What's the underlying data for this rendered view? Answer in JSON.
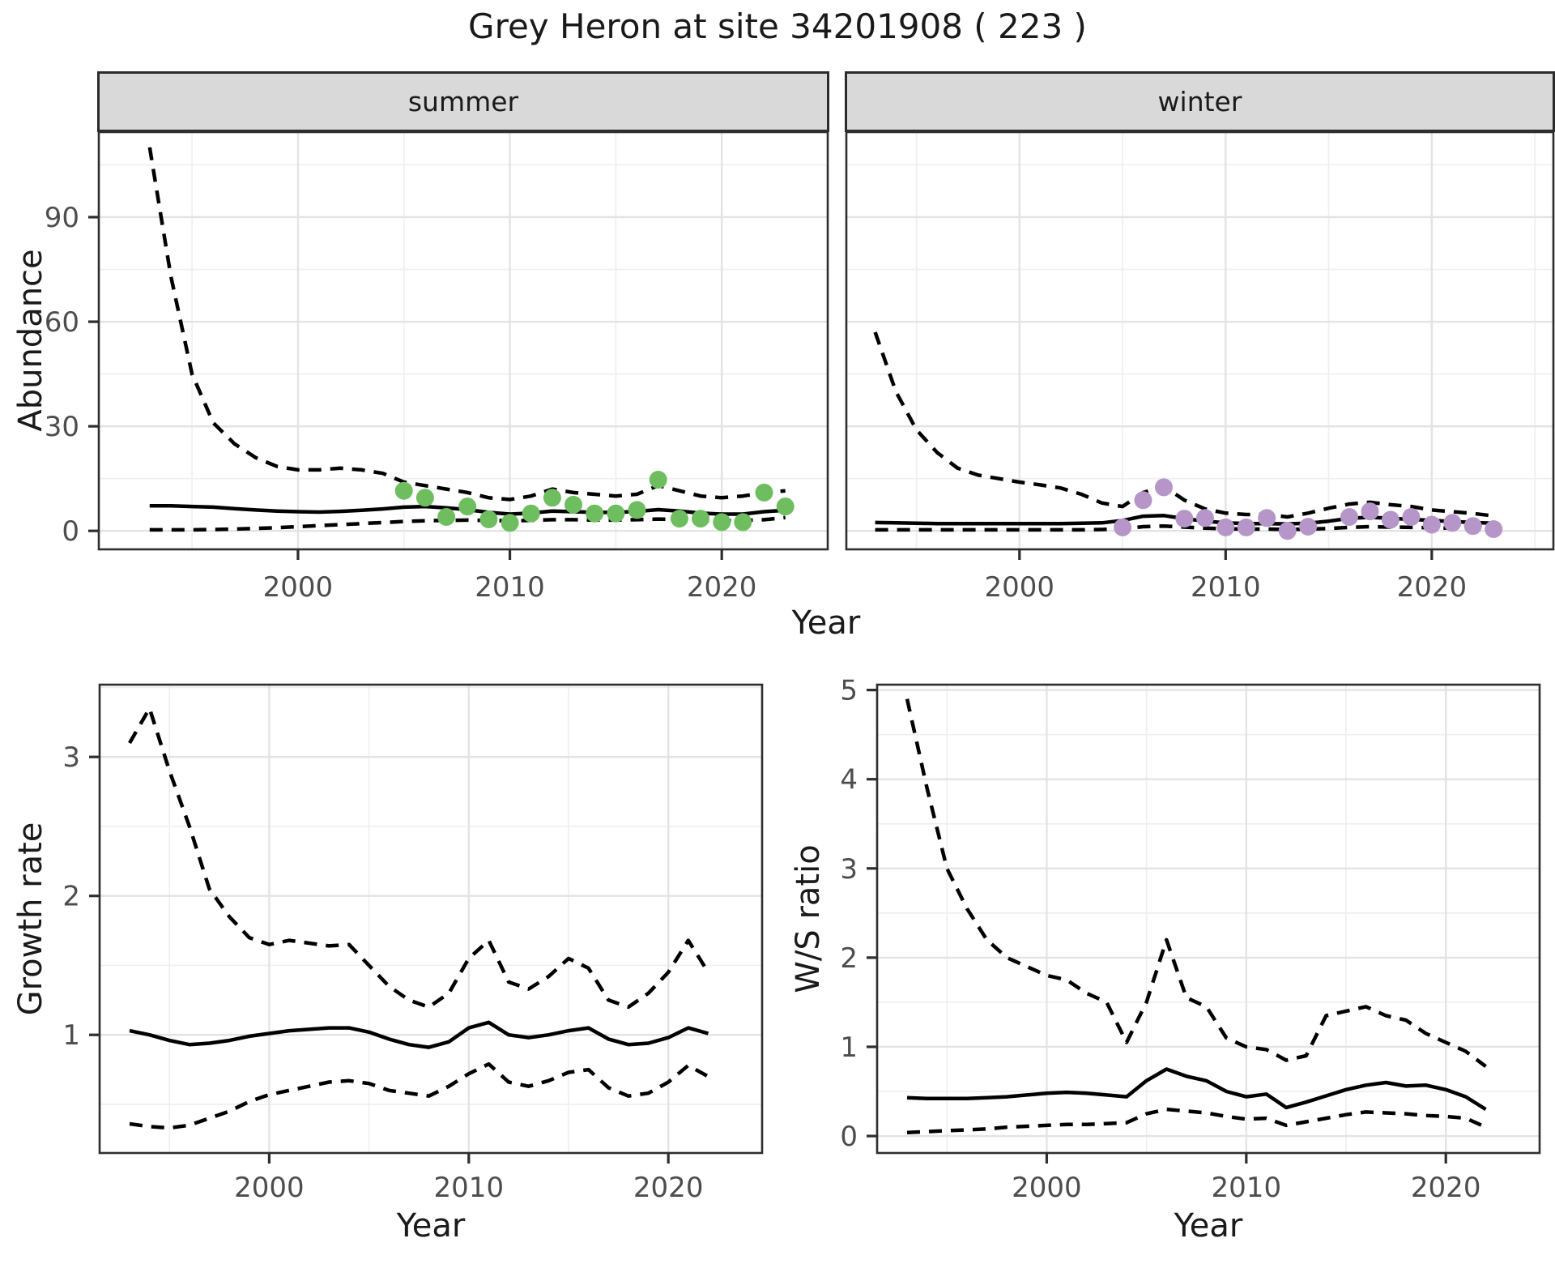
{
  "title": "Grey Heron at site 34201908 ( 223 )",
  "facets": {
    "summer": "summer",
    "winter": "winter"
  },
  "axis_titles": {
    "abundance": "Abundance",
    "year": "Year",
    "growth_rate": "Growth rate",
    "ws_ratio": "W/S ratio"
  },
  "colors": {
    "panel_bg": "#ffffff",
    "grid_major": "#e3e3e3",
    "grid_minor": "#efefef",
    "border": "#2e2e2e",
    "line": "#000000",
    "tick_text": "#4d4d4d",
    "strip_bg": "#d9d9d9",
    "summer_points": "#6ebe60",
    "winter_points": "#b696c8"
  },
  "chart_data": [
    {
      "id": "abundance_summer",
      "type": "line",
      "facet": "summer",
      "ylabel": "Abundance",
      "xlabel": "Year",
      "xlim": [
        1990.6,
        2025.0
      ],
      "ylim": [
        -5.3,
        114.4
      ],
      "x_ticks": [
        2000,
        2010,
        2020
      ],
      "x_tick_labels": [
        "2000",
        "2010",
        "2020"
      ],
      "x_minor": [
        1995,
        2005,
        2015
      ],
      "y_ticks": [
        0,
        30,
        60,
        90
      ],
      "y_tick_labels": [
        "0",
        "30",
        "60",
        "90"
      ],
      "y_minor": [
        15,
        45,
        75,
        105
      ],
      "years": [
        1993,
        1994,
        1995,
        1996,
        1997,
        1998,
        1999,
        2000,
        2001,
        2002,
        2003,
        2004,
        2005,
        2006,
        2007,
        2008,
        2009,
        2010,
        2011,
        2012,
        2013,
        2014,
        2015,
        2016,
        2017,
        2018,
        2019,
        2020,
        2021,
        2022,
        2023
      ],
      "series": [
        {
          "name": "upper-ci",
          "style": "dashed",
          "values": [
            110,
            73,
            45,
            31,
            25,
            21,
            18.5,
            17.5,
            17.5,
            18,
            17.5,
            16.5,
            14,
            13,
            12,
            11,
            9.5,
            9,
            10,
            12,
            11,
            10.5,
            10,
            10.5,
            13,
            11.5,
            10,
            9.5,
            10,
            11,
            11.5
          ]
        },
        {
          "name": "median",
          "style": "solid",
          "values": [
            7.2,
            7.2,
            7.0,
            6.8,
            6.4,
            6.0,
            5.7,
            5.5,
            5.4,
            5.6,
            5.9,
            6.3,
            6.8,
            7.0,
            6.6,
            6.1,
            5.3,
            4.8,
            5.1,
            5.7,
            5.5,
            5.3,
            5.3,
            5.6,
            6.1,
            5.7,
            5.1,
            4.8,
            4.8,
            5.5,
            5.9
          ]
        },
        {
          "name": "lower-ci",
          "style": "dashed",
          "values": [
            0.3,
            0.3,
            0.3,
            0.4,
            0.5,
            0.7,
            0.9,
            1.2,
            1.5,
            1.8,
            2.1,
            2.4,
            2.7,
            2.9,
            3.0,
            3.1,
            3.0,
            2.9,
            3.0,
            3.2,
            3.2,
            3.1,
            3.1,
            3.2,
            3.4,
            3.2,
            3.0,
            2.9,
            3.0,
            3.2,
            3.8
          ]
        }
      ],
      "points": {
        "color": "#6ebe60",
        "years": [
          2005,
          2006,
          2007,
          2008,
          2009,
          2010,
          2011,
          2012,
          2013,
          2014,
          2015,
          2016,
          2017,
          2018,
          2019,
          2020,
          2021,
          2022,
          2023
        ],
        "values": [
          11.5,
          9.5,
          4,
          7,
          3.3,
          2.3,
          5,
          9.5,
          7.5,
          5,
          5,
          6,
          14.7,
          3.5,
          3.5,
          2.5,
          2.5,
          11,
          7
        ]
      }
    },
    {
      "id": "abundance_winter",
      "type": "line",
      "facet": "winter",
      "ylabel": "Abundance",
      "xlabel": "Year",
      "xlim": [
        1991.6,
        2025.9
      ],
      "ylim": [
        -5.3,
        114.4
      ],
      "x_ticks": [
        2000,
        2010,
        2020
      ],
      "x_tick_labels": [
        "2000",
        "2010",
        "2020"
      ],
      "x_minor": [
        1995,
        2005,
        2015,
        2025
      ],
      "y_ticks": [
        0,
        30,
        60,
        90
      ],
      "y_tick_labels": [
        "0",
        "30",
        "60",
        "90"
      ],
      "y_minor": [
        15,
        45,
        75,
        105
      ],
      "years": [
        1993,
        1994,
        1995,
        1996,
        1997,
        1998,
        1999,
        2000,
        2001,
        2002,
        2003,
        2004,
        2005,
        2006,
        2007,
        2008,
        2009,
        2010,
        2011,
        2012,
        2013,
        2014,
        2015,
        2016,
        2017,
        2018,
        2019,
        2020,
        2021,
        2022,
        2023
      ],
      "series": [
        {
          "name": "upper-ci",
          "style": "dashed",
          "values": [
            57,
            40,
            29,
            22.5,
            18,
            16,
            15,
            14,
            13.2,
            12.3,
            10.5,
            8,
            7,
            11,
            12.8,
            8.8,
            6.3,
            5.1,
            4.7,
            4.7,
            4.0,
            5.1,
            6.5,
            7.7,
            8.2,
            7.5,
            7.0,
            6.0,
            5.5,
            5.0,
            4.3
          ]
        },
        {
          "name": "median",
          "style": "solid",
          "values": [
            2.4,
            2.3,
            2.2,
            2.1,
            2.1,
            2.1,
            2.1,
            2.1,
            2.1,
            2.1,
            2.2,
            2.3,
            3.0,
            4.2,
            4.4,
            3.5,
            2.8,
            2.3,
            2.1,
            2.1,
            2.0,
            2.2,
            2.8,
            3.6,
            3.9,
            3.6,
            3.3,
            3.0,
            2.7,
            2.4,
            2.2
          ]
        },
        {
          "name": "lower-ci",
          "style": "dashed",
          "values": [
            0.3,
            0.3,
            0.3,
            0.3,
            0.3,
            0.3,
            0.3,
            0.3,
            0.3,
            0.3,
            0.3,
            0.4,
            0.6,
            1.2,
            1.4,
            1.1,
            0.8,
            0.6,
            0.5,
            0.5,
            0.4,
            0.5,
            0.7,
            1.0,
            1.2,
            1.1,
            1.0,
            0.9,
            0.8,
            0.6,
            0.5
          ]
        }
      ],
      "points": {
        "color": "#b696c8",
        "years": [
          2005,
          2006,
          2007,
          2008,
          2009,
          2010,
          2011,
          2012,
          2013,
          2014,
          2016,
          2017,
          2018,
          2019,
          2020,
          2021,
          2022,
          2023
        ],
        "values": [
          1,
          8.8,
          12.5,
          3.5,
          3.7,
          1,
          1,
          3.7,
          0,
          1.2,
          4,
          5.6,
          3.2,
          4,
          1.8,
          2.3,
          1.4,
          0.5
        ]
      }
    },
    {
      "id": "growth_rate",
      "type": "line",
      "facet": null,
      "ylabel": "Growth rate",
      "xlabel": "Year",
      "xlim": [
        1991.5,
        2024.7
      ],
      "ylim": [
        0.15,
        3.52
      ],
      "x_ticks": [
        2000,
        2010,
        2020
      ],
      "x_tick_labels": [
        "2000",
        "2010",
        "2020"
      ],
      "x_minor": [
        1995,
        2005,
        2015
      ],
      "y_ticks": [
        1,
        2,
        3
      ],
      "y_tick_labels": [
        "1",
        "2",
        "3"
      ],
      "y_minor": [
        0.5,
        1.5,
        2.5,
        3.5
      ],
      "years": [
        1993,
        1994,
        1995,
        1996,
        1997,
        1998,
        1999,
        2000,
        2001,
        2002,
        2003,
        2004,
        2005,
        2006,
        2007,
        2008,
        2009,
        2010,
        2011,
        2012,
        2013,
        2014,
        2015,
        2016,
        2017,
        2018,
        2019,
        2020,
        2021,
        2022
      ],
      "series": [
        {
          "name": "upper-ci",
          "style": "dashed",
          "values": [
            3.1,
            3.35,
            2.9,
            2.5,
            2.05,
            1.85,
            1.7,
            1.65,
            1.68,
            1.66,
            1.64,
            1.65,
            1.5,
            1.35,
            1.25,
            1.2,
            1.3,
            1.55,
            1.68,
            1.38,
            1.33,
            1.42,
            1.55,
            1.48,
            1.25,
            1.2,
            1.3,
            1.45,
            1.68,
            1.45
          ]
        },
        {
          "name": "median",
          "style": "solid",
          "values": [
            1.03,
            1.0,
            0.96,
            0.93,
            0.94,
            0.96,
            0.99,
            1.01,
            1.03,
            1.04,
            1.05,
            1.05,
            1.02,
            0.97,
            0.93,
            0.91,
            0.95,
            1.05,
            1.09,
            1.0,
            0.98,
            1.0,
            1.03,
            1.05,
            0.97,
            0.93,
            0.94,
            0.98,
            1.05,
            1.01
          ]
        },
        {
          "name": "lower-ci",
          "style": "dashed",
          "values": [
            0.36,
            0.34,
            0.33,
            0.35,
            0.4,
            0.45,
            0.52,
            0.57,
            0.6,
            0.63,
            0.66,
            0.67,
            0.65,
            0.6,
            0.58,
            0.56,
            0.63,
            0.72,
            0.79,
            0.66,
            0.63,
            0.67,
            0.73,
            0.75,
            0.62,
            0.56,
            0.58,
            0.66,
            0.78,
            0.7
          ]
        }
      ],
      "points": null
    },
    {
      "id": "ws_ratio",
      "type": "line",
      "facet": null,
      "ylabel": "W/S ratio",
      "xlabel": "Year",
      "xlim": [
        1991.5,
        2024.7
      ],
      "ylim": [
        -0.19,
        5.06
      ],
      "x_ticks": [
        2000,
        2010,
        2020
      ],
      "x_tick_labels": [
        "2000",
        "2010",
        "2020"
      ],
      "x_minor": [
        1995,
        2005,
        2015
      ],
      "y_ticks": [
        0,
        1,
        2,
        3,
        4,
        5
      ],
      "y_tick_labels": [
        "0",
        "1",
        "2",
        "3",
        "4",
        "5"
      ],
      "y_minor": [
        0.5,
        1.5,
        2.5,
        3.5,
        4.5
      ],
      "years": [
        1993,
        1994,
        1995,
        1996,
        1997,
        1998,
        1999,
        2000,
        2001,
        2002,
        2003,
        2004,
        2005,
        2006,
        2007,
        2008,
        2009,
        2010,
        2011,
        2012,
        2013,
        2014,
        2015,
        2016,
        2017,
        2018,
        2019,
        2020,
        2021,
        2022
      ],
      "series": [
        {
          "name": "upper-ci",
          "style": "dashed",
          "values": [
            4.9,
            3.9,
            3.0,
            2.55,
            2.2,
            2.0,
            1.9,
            1.8,
            1.75,
            1.6,
            1.5,
            1.05,
            1.5,
            2.2,
            1.55,
            1.45,
            1.1,
            1.0,
            0.97,
            0.85,
            0.9,
            1.35,
            1.4,
            1.45,
            1.35,
            1.3,
            1.15,
            1.05,
            0.95,
            0.78
          ]
        },
        {
          "name": "median",
          "style": "solid",
          "values": [
            0.43,
            0.42,
            0.42,
            0.42,
            0.43,
            0.44,
            0.46,
            0.48,
            0.49,
            0.48,
            0.46,
            0.44,
            0.62,
            0.75,
            0.67,
            0.62,
            0.5,
            0.44,
            0.47,
            0.32,
            0.38,
            0.45,
            0.52,
            0.57,
            0.6,
            0.56,
            0.57,
            0.52,
            0.44,
            0.3
          ]
        },
        {
          "name": "lower-ci",
          "style": "dashed",
          "values": [
            0.04,
            0.05,
            0.06,
            0.07,
            0.08,
            0.1,
            0.11,
            0.12,
            0.13,
            0.13,
            0.14,
            0.15,
            0.25,
            0.3,
            0.28,
            0.26,
            0.22,
            0.19,
            0.2,
            0.12,
            0.16,
            0.2,
            0.24,
            0.27,
            0.26,
            0.25,
            0.23,
            0.22,
            0.2,
            0.1
          ]
        }
      ],
      "points": null
    }
  ]
}
